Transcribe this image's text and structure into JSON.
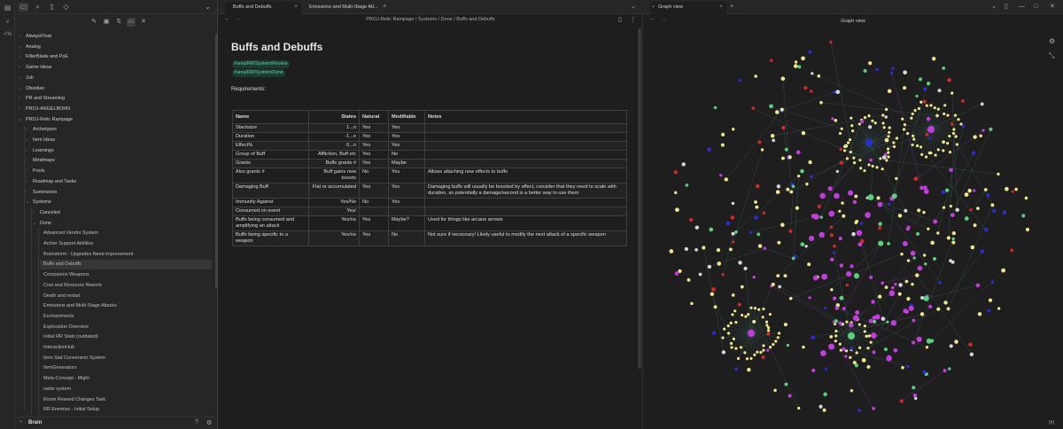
{
  "sidebar": {
    "tree": [
      {
        "label": "AlwaysFloat",
        "depth": 0,
        "kind": "folder",
        "open": false
      },
      {
        "label": "Analog",
        "depth": 0,
        "kind": "folder",
        "open": false
      },
      {
        "label": "FilterBlade and PoE",
        "depth": 0,
        "kind": "folder",
        "open": false
      },
      {
        "label": "Game Ideas",
        "depth": 0,
        "kind": "folder",
        "open": false
      },
      {
        "label": "Job",
        "depth": 0,
        "kind": "folder",
        "open": false
      },
      {
        "label": "Obsidian",
        "depth": 0,
        "kind": "folder",
        "open": false
      },
      {
        "label": "PR and Streaming",
        "depth": 0,
        "kind": "folder",
        "open": false
      },
      {
        "label": "PROJ-ANGELBORN",
        "depth": 0,
        "kind": "folder",
        "open": false
      },
      {
        "label": "PROJ-Relic Rampage",
        "depth": 0,
        "kind": "folder",
        "open": true
      },
      {
        "label": "Archetypes",
        "depth": 1,
        "kind": "folder",
        "open": false
      },
      {
        "label": "Item Ideas",
        "depth": 1,
        "kind": "folder",
        "open": false
      },
      {
        "label": "Learnings",
        "depth": 1,
        "kind": "folder",
        "open": false
      },
      {
        "label": "Mindmaps",
        "depth": 1,
        "kind": "folder",
        "open": false
      },
      {
        "label": "Pools",
        "depth": 1,
        "kind": "folder",
        "open": false
      },
      {
        "label": "Roadmap and Tasks",
        "depth": 1,
        "kind": "folder",
        "open": false
      },
      {
        "label": "Summaries",
        "depth": 1,
        "kind": "folder",
        "open": false
      },
      {
        "label": "Systems",
        "depth": 1,
        "kind": "folder",
        "open": true
      },
      {
        "label": "Canceled",
        "depth": 2,
        "kind": "folder",
        "open": false
      },
      {
        "label": "Done",
        "depth": 2,
        "kind": "folder",
        "open": true
      },
      {
        "label": "Advanced Vendor System",
        "depth": 3,
        "kind": "file"
      },
      {
        "label": "Archer Support Abilities",
        "depth": 3,
        "kind": "file"
      },
      {
        "label": "Brainstorm - Upgrades Need improvement",
        "depth": 3,
        "kind": "file"
      },
      {
        "label": "Buffs and Debuffs",
        "depth": 3,
        "kind": "file",
        "active": true
      },
      {
        "label": "Companion Weapons",
        "depth": 3,
        "kind": "file"
      },
      {
        "label": "Cost and Resource Rework",
        "depth": 3,
        "kind": "file"
      },
      {
        "label": "Death and restart",
        "depth": 3,
        "kind": "file"
      },
      {
        "label": "Emissions and Multi-Stage Attacks",
        "depth": 3,
        "kind": "file"
      },
      {
        "label": "Enchantments",
        "depth": 3,
        "kind": "file"
      },
      {
        "label": "Exploration Overview",
        "depth": 3,
        "kind": "file"
      },
      {
        "label": "Initial RR Stats (outdated)",
        "depth": 3,
        "kind": "file"
      },
      {
        "label": "InteractionHub",
        "depth": 3,
        "kind": "file"
      },
      {
        "label": "Item Stat Conversion System",
        "depth": 3,
        "kind": "file"
      },
      {
        "label": "ItemGenerators",
        "depth": 3,
        "kind": "file"
      },
      {
        "label": "Meta-Concept - Might",
        "depth": 3,
        "kind": "file"
      },
      {
        "label": "radar system",
        "depth": 3,
        "kind": "file"
      },
      {
        "label": "Room Reward Changes Task",
        "depth": 3,
        "kind": "file"
      },
      {
        "label": "RR Enemies - Initial Setup",
        "depth": 3,
        "kind": "file"
      }
    ],
    "vault_name": "Brain"
  },
  "editor": {
    "tabs": [
      {
        "label": "Buffs and Debuffs",
        "active": true
      },
      {
        "label": "Emissions and Multi-Stage Att...",
        "active": false
      }
    ],
    "breadcrumb": "PROJ-Relic Rampage / Systems / Done / Buffs and Debuffs",
    "title": "Buffs and Debuffs",
    "tags": [
      "#area/RR/System/Review",
      "#area/RR/System/Done"
    ],
    "requirements_label": "Requirements:",
    "table": {
      "headers": [
        "Name",
        "States",
        "Natural",
        "Modifiable",
        "Notes"
      ],
      "rows": [
        [
          "Stacksize",
          "1...n",
          "Yes",
          "Yes",
          ""
        ],
        [
          "Duration",
          "-1...n",
          "Yes",
          "Yes",
          ""
        ],
        [
          "Effect%",
          "0...n",
          "Yes",
          "Yes",
          ""
        ],
        [
          "Group of Buff",
          "Affliction, Buff etc",
          "Yes",
          "No",
          ""
        ],
        [
          "Grants",
          "Buffs grants #",
          "Yes",
          "Maybe",
          ""
        ],
        [
          "Also grants #",
          "Buff gains new boosts",
          "No",
          "Yes",
          "Allows attaching new effects to buffs"
        ],
        [
          "Damaging Buff",
          "Flat or accumulated",
          "Yes",
          "Yes",
          "Damaging buffs will usually be boosted by effect, consider that they need to scale with duration, so potentially a damage/second is a better way to use them"
        ],
        [
          "Immunity Against",
          "Yes/No",
          "No",
          "Yes",
          ""
        ],
        [
          "Consumed on event",
          "Yes/",
          "",
          "",
          ""
        ],
        [
          "Buffs being consumed and amplifying an attack",
          "Yes/no",
          "Yes",
          "Maybe?",
          "Used for things like arcane arrows"
        ],
        [
          "Buffs being specific to a weapon",
          "Yes/no",
          "Yes",
          "No",
          "Not sure if necessary! Likely useful to modify the next attack of a specific weapon"
        ]
      ]
    }
  },
  "graph": {
    "tab_label": "Graph view",
    "title": "Graph view",
    "status": "[A]",
    "colors": {
      "yellow": "#f0e68c",
      "magenta": "#c43be0",
      "green": "#57d27a",
      "blue": "#2b2bd9",
      "red": "#d62a2a",
      "white": "#d8d8d8",
      "edge": "#3a6b5e"
    }
  },
  "icons": {
    "ribbon": [
      "sidebar-toggle-icon",
      "graph-icon",
      "terminal-icon"
    ],
    "side_tabs": [
      "folder-icon",
      "search-icon",
      "bookmark-icon",
      "tag-icon"
    ],
    "tools": [
      "new-note-icon",
      "new-folder-icon",
      "sort-icon",
      "collapse-icon",
      "close-icon"
    ]
  }
}
